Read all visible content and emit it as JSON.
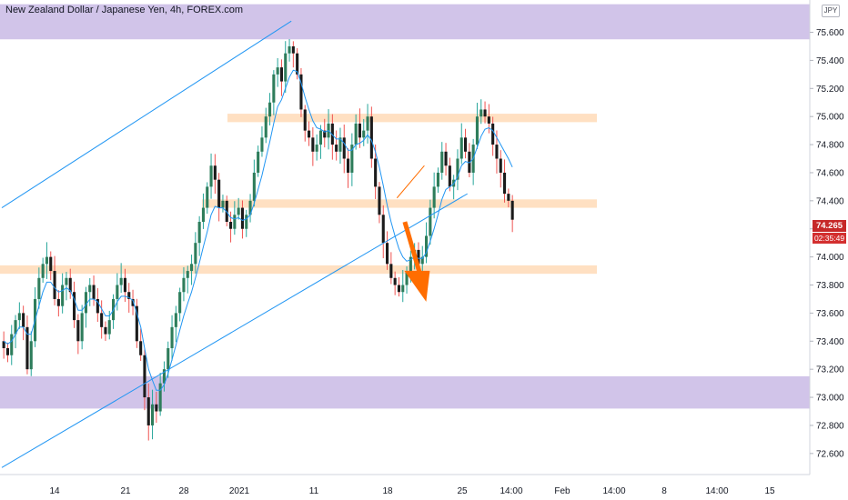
{
  "title": "New Zealand Dollar / Japanese Yen, 4h, FOREX.com",
  "currency_button": "JPY",
  "price_badge": "74.265",
  "countdown_badge": "02:35:49",
  "colors": {
    "up": "#26a69a",
    "up_candle_fill": "#2e7d5b",
    "down": "#ef5350",
    "candle_body": "#1b1b1b",
    "ma": "#2196f3",
    "channel": "#2196f3",
    "zone_purple": "#d1c4e9",
    "zone_orange": "#ffe0c2",
    "arrow": "#ff6d00",
    "badge": "#c62828"
  },
  "chart_data": {
    "type": "candlestick",
    "yaxis": {
      "labels": [
        "75.600",
        "75.400",
        "75.200",
        "75.000",
        "74.800",
        "74.600",
        "74.400",
        "74.200",
        "74.000",
        "73.800",
        "73.600",
        "73.400",
        "73.200",
        "73.000",
        "72.800",
        "72.600"
      ],
      "ylim": [
        72.45,
        75.83
      ]
    },
    "xaxis": {
      "labels": [
        "14",
        "21",
        "28",
        "2021",
        "11",
        "18",
        "25",
        "14:00",
        "Feb",
        "14:00",
        "8",
        "14:00",
        "15"
      ]
    },
    "grid": false,
    "zones": [
      {
        "kind": "supply",
        "color": "purple",
        "from": 75.55,
        "to": 75.8
      },
      {
        "kind": "demand",
        "color": "purple",
        "from": 72.92,
        "to": 73.15
      },
      {
        "kind": "level",
        "color": "orange",
        "from": 74.96,
        "to": 75.02
      },
      {
        "kind": "level",
        "color": "orange",
        "from": 74.35,
        "to": 74.41
      },
      {
        "kind": "level",
        "color": "orange",
        "from": 73.88,
        "to": 73.94
      }
    ],
    "closes_approx": [
      73.35,
      73.3,
      73.45,
      73.55,
      73.6,
      73.5,
      73.2,
      73.4,
      73.7,
      73.85,
      73.95,
      74.0,
      73.9,
      73.7,
      73.65,
      73.8,
      73.85,
      73.75,
      73.55,
      73.4,
      73.6,
      73.75,
      73.8,
      73.7,
      73.6,
      73.5,
      73.45,
      73.55,
      73.7,
      73.8,
      73.85,
      73.75,
      73.7,
      73.65,
      73.4,
      73.3,
      73.0,
      72.8,
      72.95,
      72.9,
      73.1,
      73.2,
      73.35,
      73.5,
      73.6,
      73.75,
      73.85,
      73.9,
      73.95,
      74.1,
      74.25,
      74.35,
      74.5,
      74.65,
      74.55,
      74.35,
      74.4,
      74.25,
      74.2,
      74.3,
      74.35,
      74.2,
      74.3,
      74.4,
      74.6,
      74.75,
      74.85,
      75.0,
      75.1,
      75.3,
      75.35,
      75.25,
      75.45,
      75.5,
      75.45,
      75.3,
      75.05,
      74.9,
      74.85,
      74.75,
      74.8,
      74.9,
      74.85,
      74.95,
      74.8,
      74.75,
      74.85,
      74.7,
      74.6,
      74.8,
      74.95,
      74.85,
      74.9,
      75.0,
      74.7,
      74.5,
      74.3,
      74.1,
      73.95,
      73.85,
      73.8,
      73.75,
      73.8,
      73.9,
      74.0,
      74.05,
      73.95,
      74.0,
      74.15,
      74.35,
      74.5,
      74.6,
      74.75,
      74.65,
      74.5,
      74.55,
      74.7,
      74.85,
      74.75,
      74.6,
      74.8,
      75.0,
      75.05,
      75.0,
      74.95,
      74.8,
      74.7,
      74.6,
      74.45,
      74.4,
      74.265
    ],
    "ma_approx": [
      73.4,
      73.38,
      73.4,
      73.45,
      73.5,
      73.5,
      73.45,
      73.45,
      73.55,
      73.65,
      73.75,
      73.82,
      73.82,
      73.78,
      73.75,
      73.76,
      73.78,
      73.76,
      73.7,
      73.62,
      73.62,
      73.66,
      73.7,
      73.7,
      73.68,
      73.63,
      73.58,
      73.58,
      73.62,
      73.68,
      73.72,
      73.72,
      73.71,
      73.69,
      73.6,
      73.5,
      73.35,
      73.2,
      73.12,
      73.05,
      73.05,
      73.09,
      73.17,
      73.27,
      73.37,
      73.48,
      73.58,
      73.67,
      73.75,
      73.85,
      73.96,
      74.07,
      74.18,
      74.3,
      74.36,
      74.35,
      74.35,
      74.32,
      74.28,
      74.27,
      74.28,
      74.26,
      74.27,
      74.3,
      74.38,
      74.48,
      74.58,
      74.7,
      74.82,
      74.95,
      75.07,
      75.12,
      75.2,
      75.28,
      75.33,
      75.32,
      75.24,
      75.14,
      75.05,
      74.97,
      74.92,
      74.91,
      74.89,
      74.9,
      74.87,
      74.84,
      74.84,
      74.81,
      74.76,
      74.76,
      74.8,
      74.81,
      74.83,
      74.87,
      74.83,
      74.75,
      74.64,
      74.51,
      74.37,
      74.25,
      74.15,
      74.06,
      74.0,
      73.97,
      73.98,
      74.0,
      73.99,
      73.99,
      74.03,
      74.11,
      74.2,
      74.3,
      74.41,
      74.48,
      74.5,
      74.52,
      74.57,
      74.65,
      74.68,
      74.67,
      74.7,
      74.78,
      74.86,
      74.91,
      74.92,
      74.9,
      74.85,
      74.8,
      74.75,
      74.7,
      74.64
    ],
    "annotations": [
      {
        "type": "channel_upper",
        "from": {
          "bar": 0,
          "price": 74.35
        },
        "to": {
          "bar": 74,
          "price": 75.68
        }
      },
      {
        "type": "channel_lower",
        "from": {
          "bar": 0,
          "price": 72.5
        },
        "to": {
          "bar": 119,
          "price": 74.45
        }
      },
      {
        "type": "trendline_orange",
        "from": {
          "bar": 101,
          "price": 74.42
        },
        "to": {
          "bar": 108,
          "price": 74.65
        }
      },
      {
        "type": "arrow_down",
        "from": {
          "bar": 103,
          "price": 74.25
        },
        "to": {
          "bar": 108,
          "price": 73.72
        }
      }
    ]
  }
}
